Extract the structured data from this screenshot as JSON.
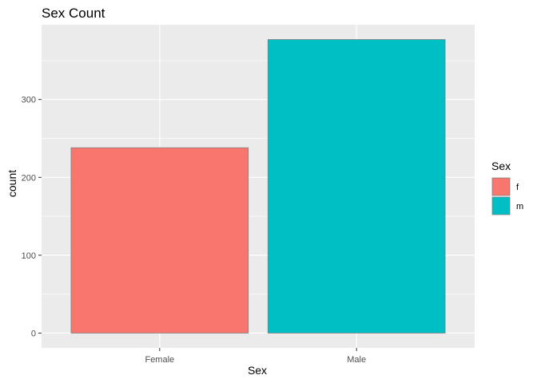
{
  "chart_data": {
    "type": "bar",
    "title": "Sex Count",
    "xlabel": "Sex",
    "ylabel": "count",
    "categories": [
      "Female",
      "Male"
    ],
    "values": [
      238,
      377
    ],
    "ylim": [
      -19,
      396
    ],
    "yticks": [
      0,
      100,
      200,
      300
    ],
    "grid": true,
    "colors": [
      "#F8766D",
      "#00BFC4"
    ],
    "panel_background": "#EBEBEB",
    "legend": {
      "title": "Sex",
      "position": "right",
      "entries": [
        {
          "label": "f",
          "color": "#F8766D"
        },
        {
          "label": "m",
          "color": "#00BFC4"
        }
      ]
    }
  }
}
